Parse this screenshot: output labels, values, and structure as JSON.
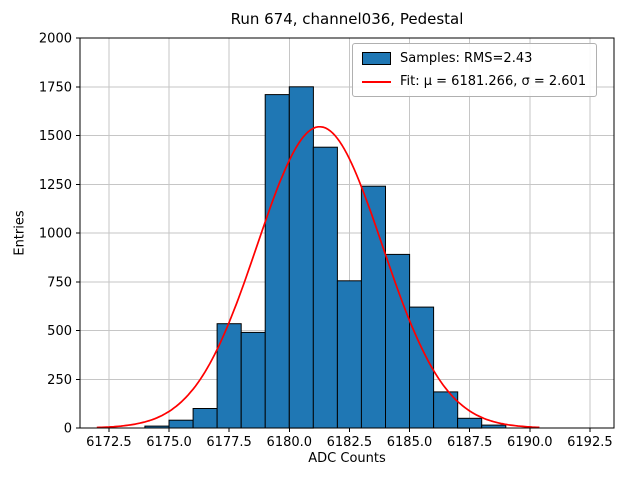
{
  "figure": {
    "title": "Run 674, channel036, Pedestal",
    "xlabel": "ADC Counts",
    "ylabel": "Entries"
  },
  "legend": {
    "samples_label": "Samples: RMS=2.43",
    "fit_label": "Fit: μ = 6181.266, σ = 2.601"
  },
  "chart_data": {
    "type": "bar",
    "subtype": "histogram-with-gaussian-fit",
    "title": "Run 674, channel036, Pedestal",
    "xlabel": "ADC Counts",
    "ylabel": "Entries",
    "xlim": [
      6171.3,
      6193.5
    ],
    "ylim": [
      0,
      2000
    ],
    "xticks": [
      6172.5,
      6175.0,
      6177.5,
      6180.0,
      6182.5,
      6185.0,
      6187.5,
      6190.0,
      6192.5
    ],
    "xtick_labels": [
      "6172.5",
      "6175.0",
      "6177.5",
      "6180.0",
      "6182.5",
      "6185.0",
      "6187.5",
      "6190.0",
      "6192.5"
    ],
    "yticks": [
      0,
      250,
      500,
      750,
      1000,
      1250,
      1500,
      1750,
      2000
    ],
    "ytick_labels": [
      "0",
      "250",
      "500",
      "750",
      "1000",
      "1250",
      "1500",
      "1750",
      "2000"
    ],
    "grid": true,
    "legend_position": "upper right",
    "histogram": {
      "legend_label": "Samples: RMS=2.43",
      "bin_start": 6174,
      "bin_width": 1,
      "counts": [
        10,
        40,
        100,
        535,
        490,
        1710,
        1750,
        1440,
        755,
        1240,
        890,
        620,
        185,
        50,
        15
      ],
      "fill_color": "#1f77b4",
      "edge_color": "#000000"
    },
    "fit": {
      "legend_label": "Fit: μ = 6181.266, σ = 2.601",
      "curve": "gaussian",
      "mu": 6181.266,
      "sigma": 2.601,
      "amplitude": 1545,
      "x_range": [
        6172.0,
        6190.4
      ],
      "color": "#ff0000"
    }
  },
  "colors": {
    "grid": "#c6c6c6",
    "spine": "#000000",
    "background": "#ffffff",
    "bar_fill": "#1f77b4",
    "fit_line": "#ff0000"
  }
}
